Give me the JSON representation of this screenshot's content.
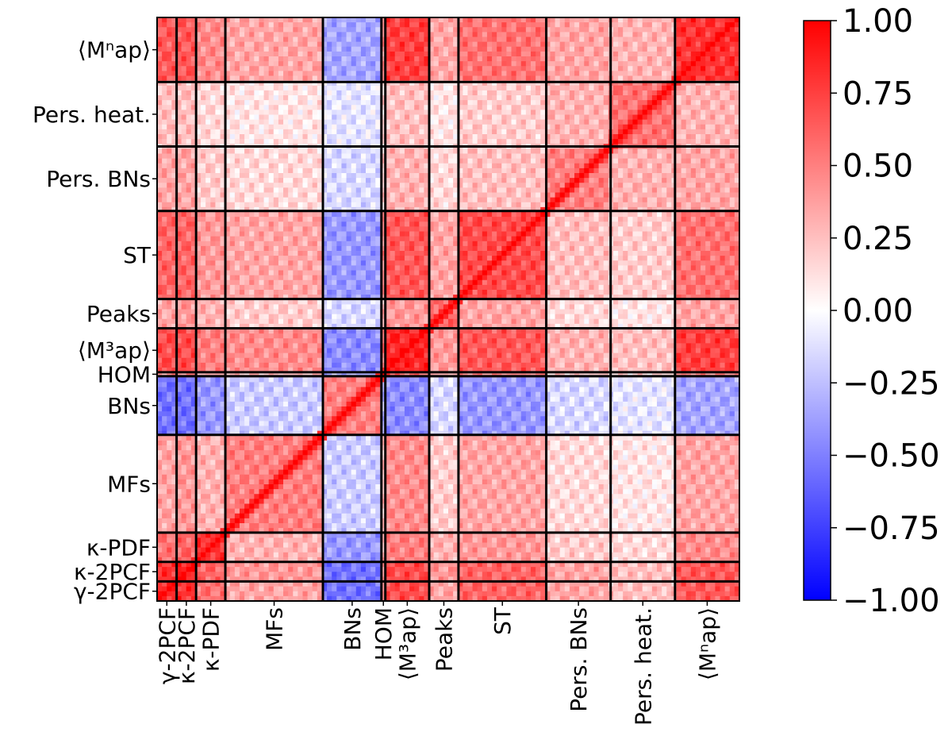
{
  "chart_data": {
    "type": "heatmap",
    "title": "",
    "description_of_values": "correlation matrix of summary statistics",
    "blocks": [
      {
        "name": "γ-2PCF",
        "x_label": "γ-2PCF",
        "y_label": "γ-2PCF",
        "size": 20
      },
      {
        "name": "κ-2PCF",
        "x_label": "κ-2PCF",
        "y_label": "κ-2PCF",
        "size": 20
      },
      {
        "name": "κ-PDF",
        "x_label": "κ-PDF",
        "y_label": "κ-PDF",
        "size": 30
      },
      {
        "name": "MFs",
        "x_label": "MFs",
        "y_label": "MFs",
        "size": 100
      },
      {
        "name": "BNs",
        "x_label": "BNs",
        "y_label": "BNs",
        "size": 60
      },
      {
        "name": "HOM",
        "x_label": "HOM",
        "y_label": "HOM",
        "size": 4
      },
      {
        "name": "Map3",
        "x_label": "⟨M³ap⟩",
        "y_label": "⟨M³ap⟩",
        "size": 45
      },
      {
        "name": "Peaks",
        "x_label": "Peaks",
        "y_label": "Peaks",
        "size": 30
      },
      {
        "name": "ST",
        "x_label": "ST",
        "y_label": "ST",
        "size": 90
      },
      {
        "name": "Pers. BNs",
        "x_label": "Pers. BNs",
        "y_label": "Pers. BNs",
        "size": 66
      },
      {
        "name": "Pers. heat.",
        "x_label": "Pers. heat.",
        "y_label": "Pers. heat.",
        "size": 66
      },
      {
        "name": "Mapn",
        "x_label": "⟨Mⁿap⟩",
        "y_label": "⟨Mⁿap⟩",
        "size": 66
      }
    ],
    "colorbar": {
      "colormap": "bwr",
      "vmin": -1.0,
      "vmax": 1.0,
      "ticks": [
        1.0,
        0.75,
        0.5,
        0.25,
        0.0,
        -0.25,
        -0.5,
        -0.75,
        -1.0
      ],
      "tick_labels": [
        "1.00",
        "0.75",
        "0.50",
        "0.25",
        "0.00",
        "−0.25",
        "−0.50",
        "−0.75",
        "−1.00"
      ]
    },
    "colors": {
      "max": "#ff0000",
      "mid": "#ffffff",
      "min": "#0000ff",
      "block_border": "#000000"
    },
    "block_mean_correlations": [
      [
        0.85,
        0.8,
        0.55,
        0.35,
        -0.55,
        0.4,
        0.7,
        0.35,
        0.6,
        0.35,
        0.25,
        0.65
      ],
      [
        0.8,
        0.9,
        0.6,
        0.4,
        -0.55,
        0.45,
        0.7,
        0.4,
        0.6,
        0.35,
        0.25,
        0.65
      ],
      [
        0.55,
        0.6,
        0.8,
        0.3,
        -0.4,
        0.3,
        0.5,
        0.3,
        0.4,
        0.2,
        0.15,
        0.45
      ],
      [
        0.35,
        0.4,
        0.3,
        0.5,
        -0.2,
        0.25,
        0.45,
        0.2,
        0.35,
        0.15,
        0.1,
        0.35
      ],
      [
        -0.55,
        -0.55,
        -0.4,
        -0.2,
        0.5,
        -0.3,
        -0.45,
        -0.15,
        -0.4,
        -0.15,
        -0.1,
        -0.35
      ],
      [
        0.4,
        0.45,
        0.3,
        0.25,
        -0.3,
        0.8,
        0.55,
        0.3,
        0.45,
        0.2,
        0.15,
        0.45
      ],
      [
        0.7,
        0.7,
        0.5,
        0.45,
        -0.45,
        0.55,
        0.85,
        0.4,
        0.65,
        0.3,
        0.25,
        0.75
      ],
      [
        0.35,
        0.4,
        0.3,
        0.2,
        -0.15,
        0.3,
        0.4,
        0.6,
        0.35,
        0.15,
        0.1,
        0.35
      ],
      [
        0.6,
        0.6,
        0.4,
        0.35,
        -0.4,
        0.45,
        0.65,
        0.35,
        0.7,
        0.25,
        0.2,
        0.55
      ],
      [
        0.35,
        0.35,
        0.2,
        0.15,
        -0.15,
        0.2,
        0.3,
        0.15,
        0.25,
        0.5,
        0.3,
        0.35
      ],
      [
        0.25,
        0.25,
        0.15,
        0.1,
        -0.1,
        0.15,
        0.25,
        0.1,
        0.2,
        0.3,
        0.55,
        0.3
      ],
      [
        0.65,
        0.65,
        0.45,
        0.35,
        -0.35,
        0.45,
        0.75,
        0.35,
        0.55,
        0.35,
        0.3,
        0.8
      ]
    ]
  }
}
